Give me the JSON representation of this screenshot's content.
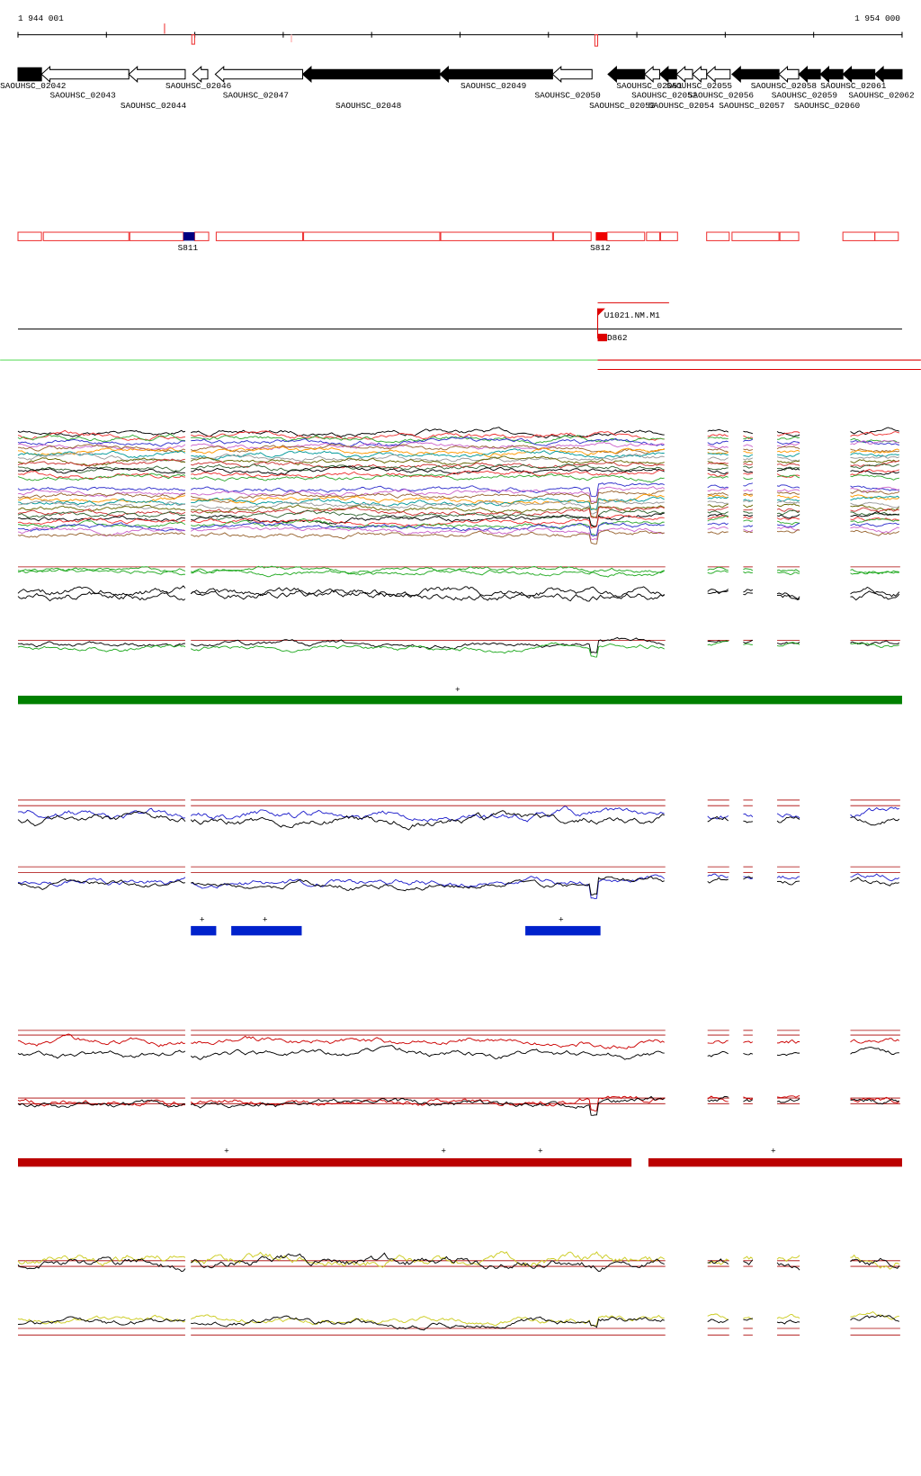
{
  "ruler": {
    "start": "1 944 001",
    "end": "1 954 000"
  },
  "genes": [
    {
      "label": "SAOUHSC_02042"
    },
    {
      "label": "SAOUHSC_02043"
    },
    {
      "label": "SAOUHSC_02044"
    },
    {
      "label": "SAOUHSC_02046"
    },
    {
      "label": "SAOUHSC_02047"
    },
    {
      "label": "SAOUHSC_02048"
    },
    {
      "label": "SAOUHSC_02049"
    },
    {
      "label": "SAOUHSC_02050"
    },
    {
      "label": "SAOUHSC_02051"
    },
    {
      "label": "SAOUHSC_02052"
    },
    {
      "label": "SAOUHSC_02053"
    },
    {
      "label": "SAOUHSC_02054"
    },
    {
      "label": "SAOUHSC_02055"
    },
    {
      "label": "SAOUHSC_02056"
    },
    {
      "label": "SAOUHSC_02057"
    },
    {
      "label": "SAOUHSC_02058"
    },
    {
      "label": "SAOUHSC_02059"
    },
    {
      "label": "SAOUHSC_02060"
    },
    {
      "label": "SAOUHSC_02061"
    },
    {
      "label": "SAOUHSC_02062"
    }
  ],
  "features": [
    {
      "label": "S811"
    },
    {
      "label": "S812"
    }
  ],
  "annotations": [
    {
      "label": "U1021.NM.M1"
    },
    {
      "label": "D862"
    }
  ],
  "markers": {
    "green": [
      "+"
    ],
    "blue": [
      "+",
      "+",
      "+"
    ],
    "red": [
      "+",
      "+",
      "+",
      "+"
    ]
  }
}
